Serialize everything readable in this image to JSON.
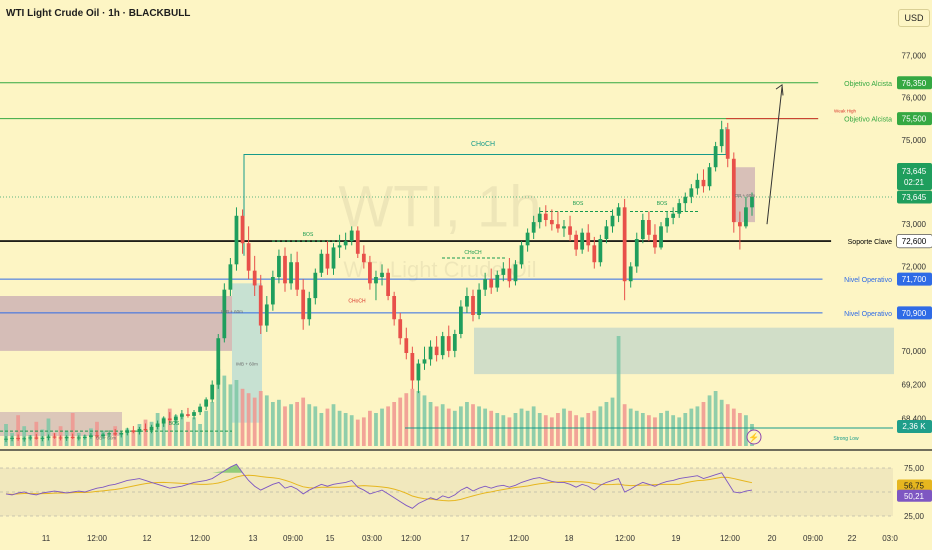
{
  "header": {
    "title": "WTI Light Crude Oil · 1h · BLACKBULL",
    "currency_button": "USD",
    "watermark_symbol": "WTI, 1h",
    "watermark_name": "WTI Light Crude Oil"
  },
  "colors": {
    "background": "#fdf5c4",
    "bull_candle": "#1f9e5d",
    "bear_candle": "#e8504a",
    "target_line": "#35a842",
    "key_support": "#000000",
    "operative_level": "#2f6be6",
    "rsi_line": "#7e57c2",
    "rsi_ma": "#e6b61f",
    "ob_bearish_zone": "#c7a9b3",
    "ob_bullish_zone": "#c5d8c9",
    "choch_line": "#169a8a"
  },
  "price_axis": {
    "ticks": [
      "77,000",
      "76,000",
      "75,000",
      "74,000",
      "73,000",
      "72,000",
      "70,900",
      "70,000",
      "69,200",
      "68,400"
    ]
  },
  "levels": [
    {
      "name": "Objetivo Alcista",
      "value": "76,350",
      "color": "#35a842"
    },
    {
      "name": "Objetivo Alcista",
      "value": "75,500",
      "color": "#35a842"
    },
    {
      "name": "Soporte Clave",
      "value": "72,600",
      "color": "#000000"
    },
    {
      "name": "Nivel Operativo",
      "value": "71,700",
      "color": "#2f6be6"
    },
    {
      "name": "Nivel Operativo",
      "value": "70,900",
      "color": "#2f6be6"
    }
  ],
  "current_price": {
    "value": "73,645",
    "countdown": "02:21"
  },
  "volume_badge": "2,36 K",
  "annotations": {
    "choch_main": "CHoCH",
    "choch_small": "CHoCH",
    "choch_red": "CHoCH",
    "bos_labels": [
      "BOS",
      "BOS",
      "BOS",
      "BOS"
    ],
    "weak_high": "Weak High",
    "strong_low": "Strong Low",
    "ob_labels": [
      "IMB + 60m",
      "IMB + 60m",
      "OB + 60m",
      "OB + 60m"
    ]
  },
  "rsi": {
    "ticks": [
      "75,00",
      "25,00"
    ],
    "value": "50,21",
    "ma_value": "56,75"
  },
  "time_axis": {
    "labels": [
      "11",
      "12:00",
      "12",
      "12:00",
      "13",
      "09:00",
      "15",
      "03:00",
      "12:00",
      "17",
      "12:00",
      "18",
      "12:00",
      "19",
      "12:00",
      "20",
      "09:00",
      "22",
      "03:0"
    ]
  },
  "chart_data": {
    "type": "candlestick",
    "title": "WTI Light Crude Oil · 1h · BLACKBULL",
    "ylim": [
      67.7,
      77.6
    ],
    "y_ticks": [
      68.4,
      69.2,
      70.0,
      70.9,
      72.0,
      73.0,
      74.0,
      75.0,
      76.0,
      77.0
    ],
    "x_labels": [
      "11",
      "12:00",
      "12",
      "12:00",
      "13",
      "09:00",
      "15",
      "03:00",
      "12:00",
      "17",
      "12:00",
      "18",
      "12:00",
      "19",
      "12:00",
      "20",
      "09:00",
      "22",
      "03:0"
    ],
    "ohlc": [
      [
        67.9,
        67.98,
        67.84,
        67.92
      ],
      [
        67.92,
        67.99,
        67.86,
        67.94
      ],
      [
        67.94,
        68.02,
        67.87,
        67.91
      ],
      [
        67.91,
        67.97,
        67.85,
        67.93
      ],
      [
        67.93,
        68.0,
        67.88,
        67.95
      ],
      [
        67.95,
        68.03,
        67.9,
        67.92
      ],
      [
        67.92,
        67.98,
        67.86,
        67.94
      ],
      [
        67.94,
        68.02,
        67.88,
        67.97
      ],
      [
        67.97,
        68.05,
        67.92,
        67.95
      ],
      [
        67.95,
        68.0,
        67.88,
        67.93
      ],
      [
        67.93,
        68.0,
        67.87,
        67.96
      ],
      [
        67.96,
        68.04,
        67.91,
        67.94
      ],
      [
        67.94,
        68.0,
        67.88,
        67.95
      ],
      [
        67.95,
        68.02,
        67.9,
        67.96
      ],
      [
        67.96,
        68.05,
        67.92,
        68.0
      ],
      [
        68.0,
        68.1,
        67.94,
        67.98
      ],
      [
        67.98,
        68.06,
        67.92,
        68.02
      ],
      [
        68.02,
        68.12,
        67.96,
        68.05
      ],
      [
        68.05,
        68.15,
        67.99,
        68.02
      ],
      [
        68.02,
        68.1,
        67.95,
        68.06
      ],
      [
        68.06,
        68.18,
        68.0,
        68.12
      ],
      [
        68.12,
        68.22,
        68.05,
        68.08
      ],
      [
        68.08,
        68.2,
        68.02,
        68.15
      ],
      [
        68.15,
        68.28,
        68.08,
        68.12
      ],
      [
        68.12,
        68.25,
        68.05,
        68.2
      ],
      [
        68.2,
        68.35,
        68.14,
        68.28
      ],
      [
        68.28,
        68.45,
        68.2,
        68.4
      ],
      [
        68.4,
        68.55,
        68.3,
        68.36
      ],
      [
        68.36,
        68.5,
        68.28,
        68.44
      ],
      [
        68.44,
        68.6,
        68.38,
        68.5
      ],
      [
        68.5,
        68.65,
        68.42,
        68.46
      ],
      [
        68.46,
        68.6,
        68.38,
        68.55
      ],
      [
        68.55,
        68.75,
        68.48,
        68.68
      ],
      [
        68.68,
        68.9,
        68.6,
        68.85
      ],
      [
        68.85,
        69.3,
        68.78,
        69.2
      ],
      [
        69.2,
        70.4,
        69.1,
        70.3
      ],
      [
        70.3,
        71.6,
        70.2,
        71.45
      ],
      [
        71.45,
        72.2,
        71.3,
        72.05
      ],
      [
        72.05,
        73.4,
        71.9,
        73.2
      ],
      [
        73.2,
        73.35,
        72.3,
        72.55
      ],
      [
        72.55,
        72.95,
        71.7,
        71.9
      ],
      [
        71.9,
        72.25,
        71.3,
        71.55
      ],
      [
        71.55,
        71.8,
        70.4,
        70.6
      ],
      [
        70.6,
        71.3,
        70.45,
        71.1
      ],
      [
        71.1,
        71.9,
        70.95,
        71.75
      ],
      [
        71.75,
        72.4,
        71.6,
        72.25
      ],
      [
        72.25,
        72.45,
        71.4,
        71.6
      ],
      [
        71.6,
        72.3,
        71.45,
        72.1
      ],
      [
        72.1,
        72.35,
        71.3,
        71.45
      ],
      [
        71.45,
        71.7,
        70.5,
        70.75
      ],
      [
        70.75,
        71.4,
        70.6,
        71.25
      ],
      [
        71.25,
        71.95,
        71.1,
        71.85
      ],
      [
        71.85,
        72.4,
        71.75,
        72.3
      ],
      [
        72.3,
        72.6,
        71.8,
        71.95
      ],
      [
        71.95,
        72.55,
        71.8,
        72.45
      ],
      [
        72.45,
        72.75,
        72.2,
        72.5
      ],
      [
        72.5,
        72.8,
        72.4,
        72.6
      ],
      [
        72.6,
        72.95,
        72.5,
        72.85
      ],
      [
        72.85,
        72.95,
        72.2,
        72.3
      ],
      [
        72.3,
        72.5,
        71.95,
        72.1
      ],
      [
        72.1,
        72.25,
        71.45,
        71.6
      ],
      [
        71.6,
        71.9,
        71.2,
        71.75
      ],
      [
        71.75,
        72.05,
        71.55,
        71.85
      ],
      [
        71.85,
        71.95,
        71.2,
        71.3
      ],
      [
        71.3,
        71.4,
        70.6,
        70.75
      ],
      [
        70.75,
        70.9,
        70.15,
        70.3
      ],
      [
        70.3,
        70.55,
        69.8,
        69.95
      ],
      [
        69.95,
        70.1,
        69.1,
        69.3
      ],
      [
        69.3,
        69.8,
        69.0,
        69.7
      ],
      [
        69.7,
        70.1,
        69.55,
        69.8
      ],
      [
        69.8,
        70.25,
        69.65,
        70.1
      ],
      [
        70.1,
        70.35,
        69.75,
        69.9
      ],
      [
        69.9,
        70.45,
        69.8,
        70.35
      ],
      [
        70.35,
        70.6,
        69.85,
        70.0
      ],
      [
        70.0,
        70.5,
        69.85,
        70.4
      ],
      [
        70.4,
        71.2,
        70.3,
        71.05
      ],
      [
        71.05,
        71.5,
        70.9,
        71.3
      ],
      [
        71.3,
        71.45,
        70.7,
        70.85
      ],
      [
        70.85,
        71.6,
        70.75,
        71.45
      ],
      [
        71.45,
        71.85,
        71.3,
        71.7
      ],
      [
        71.7,
        71.95,
        71.35,
        71.5
      ],
      [
        71.5,
        71.9,
        71.4,
        71.8
      ],
      [
        71.8,
        72.1,
        71.65,
        71.95
      ],
      [
        71.95,
        72.2,
        71.5,
        71.65
      ],
      [
        71.65,
        72.15,
        71.55,
        72.05
      ],
      [
        72.05,
        72.6,
        71.95,
        72.5
      ],
      [
        72.5,
        72.9,
        72.35,
        72.8
      ],
      [
        72.8,
        73.2,
        72.65,
        73.05
      ],
      [
        73.05,
        73.4,
        72.9,
        73.25
      ],
      [
        73.25,
        73.45,
        72.95,
        73.1
      ],
      [
        73.1,
        73.35,
        72.85,
        73.0
      ],
      [
        73.0,
        73.3,
        72.8,
        72.9
      ],
      [
        72.9,
        73.1,
        72.7,
        72.95
      ],
      [
        72.95,
        73.2,
        72.6,
        72.75
      ],
      [
        72.75,
        72.85,
        72.25,
        72.4
      ],
      [
        72.4,
        72.9,
        72.3,
        72.8
      ],
      [
        72.8,
        73.0,
        72.35,
        72.5
      ],
      [
        72.5,
        72.7,
        71.95,
        72.1
      ],
      [
        72.1,
        72.75,
        72.0,
        72.65
      ],
      [
        72.65,
        73.1,
        72.55,
        72.95
      ],
      [
        72.95,
        73.35,
        72.8,
        73.2
      ],
      [
        73.2,
        73.5,
        73.05,
        73.4
      ],
      [
        73.4,
        73.6,
        71.2,
        71.65
      ],
      [
        71.65,
        72.1,
        71.5,
        72.0
      ],
      [
        72.0,
        72.8,
        71.85,
        72.65
      ],
      [
        72.65,
        73.25,
        72.55,
        73.1
      ],
      [
        73.1,
        73.3,
        72.6,
        72.75
      ],
      [
        72.75,
        73.0,
        72.3,
        72.45
      ],
      [
        72.45,
        73.05,
        72.4,
        72.95
      ],
      [
        72.95,
        73.3,
        72.8,
        73.15
      ],
      [
        73.15,
        73.4,
        73.0,
        73.25
      ],
      [
        73.25,
        73.6,
        73.15,
        73.5
      ],
      [
        73.5,
        73.75,
        73.3,
        73.65
      ],
      [
        73.65,
        73.95,
        73.5,
        73.85
      ],
      [
        73.85,
        74.2,
        73.7,
        74.05
      ],
      [
        74.05,
        74.3,
        73.75,
        73.9
      ],
      [
        73.9,
        74.45,
        73.8,
        74.35
      ],
      [
        74.35,
        74.95,
        74.25,
        74.85
      ],
      [
        74.85,
        75.45,
        74.7,
        75.25
      ],
      [
        75.25,
        75.4,
        74.35,
        74.55
      ],
      [
        74.55,
        74.7,
        72.8,
        73.05
      ],
      [
        73.05,
        73.3,
        72.4,
        72.95
      ],
      [
        72.95,
        73.65,
        72.9,
        73.4
      ],
      [
        73.4,
        73.75,
        73.2,
        73.65
      ]
    ],
    "volume": [
      20,
      12,
      28,
      18,
      10,
      22,
      15,
      25,
      12,
      18,
      14,
      30,
      12,
      10,
      16,
      22,
      14,
      10,
      18,
      12,
      16,
      14,
      20,
      24,
      22,
      30,
      26,
      34,
      28,
      30,
      22,
      26,
      20,
      32,
      40,
      70,
      64,
      56,
      60,
      52,
      48,
      44,
      50,
      46,
      40,
      42,
      36,
      38,
      40,
      44,
      38,
      36,
      30,
      34,
      38,
      32,
      30,
      28,
      24,
      26,
      32,
      30,
      34,
      36,
      40,
      44,
      48,
      52,
      50,
      46,
      40,
      36,
      38,
      34,
      32,
      36,
      40,
      38,
      36,
      34,
      32,
      30,
      28,
      26,
      30,
      34,
      32,
      36,
      30,
      28,
      26,
      30,
      34,
      32,
      28,
      26,
      30,
      32,
      36,
      40,
      44,
      100,
      38,
      34,
      32,
      30,
      28,
      26,
      30,
      32,
      28,
      26,
      30,
      34,
      36,
      40,
      46,
      50,
      42,
      38,
      34,
      30,
      28,
      20
    ],
    "rsi": [
      48,
      47,
      49,
      50,
      48,
      47,
      49,
      50,
      51,
      50,
      49,
      50,
      51,
      50,
      52,
      54,
      55,
      57,
      58,
      60,
      62,
      63,
      64,
      62,
      60,
      58,
      56,
      54,
      55,
      56,
      58,
      60,
      61,
      62,
      64,
      68,
      72,
      76,
      79,
      70,
      62,
      56,
      52,
      55,
      58,
      60,
      54,
      56,
      53,
      48,
      52,
      55,
      58,
      56,
      58,
      59,
      60,
      62,
      55,
      52,
      48,
      50,
      52,
      48,
      44,
      40,
      36,
      33,
      38,
      41,
      44,
      42,
      46,
      44,
      47,
      52,
      55,
      51,
      54,
      56,
      54,
      56,
      57,
      55,
      57,
      60,
      62,
      64,
      65,
      63,
      61,
      60,
      60,
      58,
      55,
      58,
      56,
      52,
      57,
      60,
      62,
      64,
      50,
      53,
      57,
      60,
      58,
      56,
      59,
      61,
      62,
      64,
      65,
      66,
      67,
      64,
      66,
      68,
      70,
      60,
      50,
      49,
      51,
      52
    ],
    "rsi_ylim": [
      25,
      75
    ],
    "rsi_value": 50.21,
    "rsi_ma_value": 56.75,
    "levels": [
      76.35,
      75.5,
      72.6,
      71.7,
      70.9
    ],
    "zones": [
      {
        "name": "bearish OB",
        "y": [
          70.0,
          71.3
        ]
      },
      {
        "name": "bullish OB",
        "y": [
          69.45,
          70.55
        ]
      }
    ],
    "current_price": 73.645
  }
}
